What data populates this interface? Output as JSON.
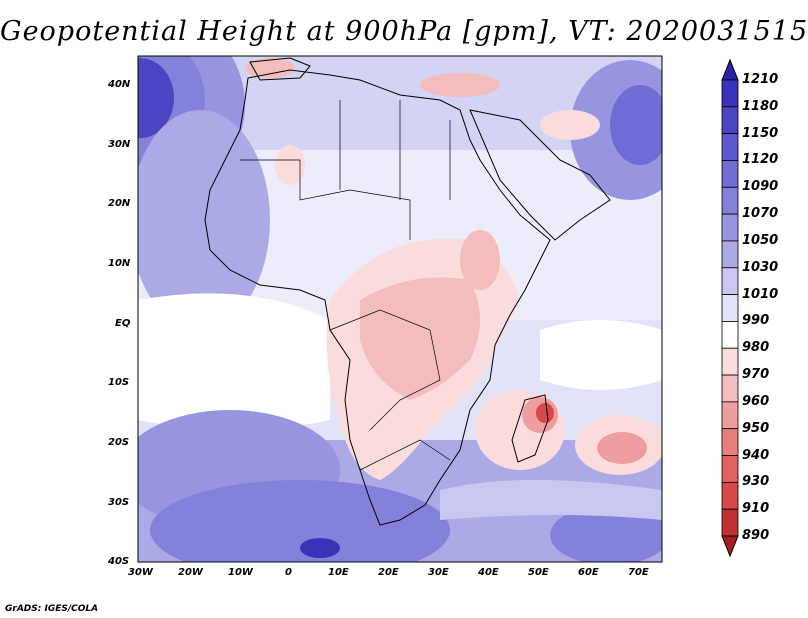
{
  "title": "Geopotential Height at 900hPa [gpm], VT: 2020031515",
  "credit": "GrADS: IGES/COLA",
  "latitude_labels": [
    "40N",
    "30N",
    "20N",
    "10N",
    "EQ",
    "10S",
    "20S",
    "30S",
    "40S"
  ],
  "longitude_labels": [
    "30W",
    "20W",
    "10W",
    "0",
    "10E",
    "20E",
    "30E",
    "40E",
    "50E",
    "60E",
    "70E"
  ],
  "colorbar": {
    "levels": [
      "1210",
      "1180",
      "1150",
      "1120",
      "1090",
      "1070",
      "1050",
      "1030",
      "1010",
      "990",
      "980",
      "970",
      "960",
      "950",
      "940",
      "930",
      "910",
      "890"
    ],
    "colors": [
      "#2a21a8",
      "#3a32b8",
      "#4b45c4",
      "#5d58cc",
      "#6f6cd3",
      "#8381da",
      "#9795e0",
      "#abaae7",
      "#c7c7f0",
      "#e2e2f8",
      "#ffffff",
      "#fadcdc",
      "#f4bdbd",
      "#ee9e9e",
      "#e87f7f",
      "#e06262",
      "#d94848",
      "#c03030",
      "#a02020"
    ]
  },
  "map": {
    "lat_range": [
      -40,
      45
    ],
    "lon_range": [
      -30,
      75
    ],
    "features": [
      {
        "lon": 50,
        "lat": -15,
        "color": "#d94848"
      },
      {
        "lon": 65,
        "lat": -21,
        "color": "#ee9e9e"
      },
      {
        "lon": 10,
        "lat": -38,
        "color": "#3a32b8"
      },
      {
        "lon": -26,
        "lat": 36,
        "color": "#4b45c4"
      }
    ]
  }
}
